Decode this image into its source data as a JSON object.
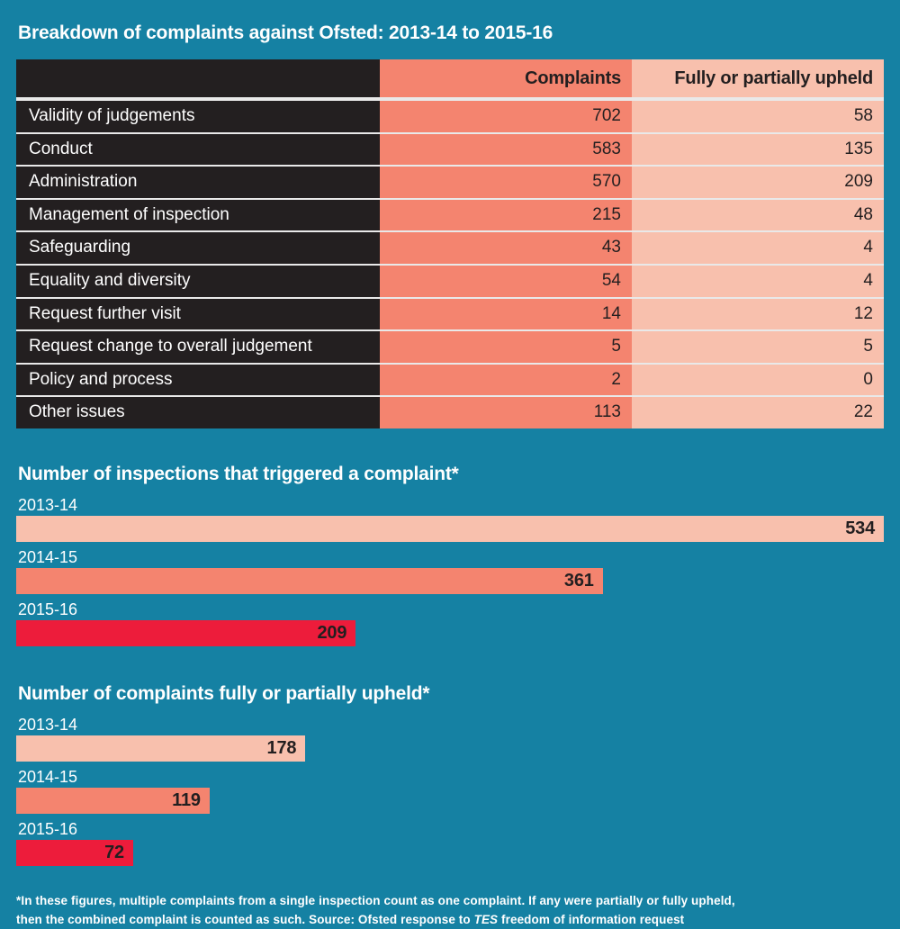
{
  "header": {
    "title": "Breakdown of complaints against Ofsted: 2013-14 to 2015-16"
  },
  "colors": {
    "background": "#1581A3",
    "panel_black": "#231F20",
    "salmon": "#F4846F",
    "light_pink": "#F8C0AD",
    "red": "#ED1C3B",
    "text_light": "#FFFFFF",
    "text_dark": "#231F20",
    "row_divider": "#E9E9E9"
  },
  "chart_data": [
    {
      "type": "table",
      "columns": [
        "",
        "Complaints",
        "Fully or partially upheld"
      ],
      "rows": [
        [
          "Validity of judgements",
          702,
          58
        ],
        [
          "Conduct",
          583,
          135
        ],
        [
          "Administration",
          570,
          209
        ],
        [
          "Management of inspection",
          215,
          48
        ],
        [
          "Safeguarding",
          43,
          4
        ],
        [
          "Equality and diversity",
          54,
          4
        ],
        [
          "Request further visit",
          14,
          12
        ],
        [
          "Request change to overall judgement",
          5,
          5
        ],
        [
          "Policy and process",
          2,
          0
        ],
        [
          "Other issues",
          113,
          22
        ]
      ]
    },
    {
      "type": "bar",
      "orientation": "horizontal",
      "title": "Number of inspections that triggered a complaint*",
      "categories": [
        "2013-14",
        "2014-15",
        "2015-16"
      ],
      "values": [
        534,
        361,
        209
      ],
      "xlim": [
        0,
        534
      ],
      "bar_colors": [
        "#F8C0AD",
        "#F4846F",
        "#ED1C3B"
      ],
      "value_label_position": "inside-right",
      "grid": false,
      "legend": false
    },
    {
      "type": "bar",
      "orientation": "horizontal",
      "title": "Number of complaints fully or partially upheld*",
      "categories": [
        "2013-14",
        "2014-15",
        "2015-16"
      ],
      "values": [
        178,
        119,
        72
      ],
      "xlim": [
        0,
        534
      ],
      "bar_colors": [
        "#F8C0AD",
        "#F4846F",
        "#ED1C3B"
      ],
      "value_label_position": "inside-right",
      "grid": false,
      "legend": false
    }
  ],
  "footnote": {
    "line1": "*In these figures, multiple complaints from a single inspection count as one complaint. If any were partially or fully upheld,",
    "line2_pre": "then the combined complaint is counted as such. Source: Ofsted response to ",
    "line2_italic": "TES",
    "line2_post": " freedom of information request"
  }
}
